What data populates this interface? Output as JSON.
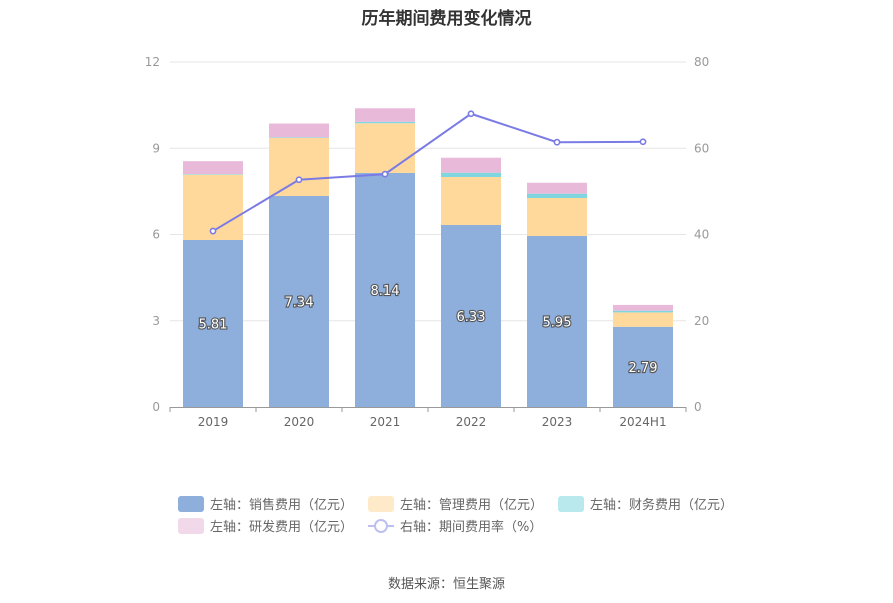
{
  "title": "历年期间费用变化情况",
  "source": "数据来源：恒生聚源",
  "chart_data": {
    "type": "bar",
    "stacked": true,
    "categories": [
      "2019",
      "2020",
      "2021",
      "2022",
      "2023",
      "2024H1"
    ],
    "y_left": {
      "ylim": [
        0,
        12
      ],
      "ticks": [
        "0",
        "3",
        "6",
        "9",
        "12"
      ]
    },
    "y_right": {
      "ylim": [
        0,
        80
      ],
      "ticks": [
        "0",
        "20",
        "40",
        "60",
        "80"
      ]
    },
    "grid": true,
    "legend_position": "bottom",
    "series": [
      {
        "name": "左轴：销售费用（亿元）",
        "type": "bar",
        "axis": "left",
        "color": "#8eaedb",
        "values": [
          5.81,
          7.34,
          8.14,
          6.33,
          5.95,
          2.79
        ],
        "labels": [
          "5.81",
          "7.34",
          "8.14",
          "6.33",
          "5.95",
          "2.79"
        ]
      },
      {
        "name": "左轴：管理费用（亿元）",
        "type": "bar",
        "axis": "left",
        "color": "#fed99b",
        "values": [
          2.27,
          2.02,
          1.73,
          1.67,
          1.32,
          0.5
        ]
      },
      {
        "name": "左轴：财务费用（亿元）",
        "type": "bar",
        "axis": "left",
        "color": "#7fd6df",
        "values": [
          0.02,
          0.02,
          0.05,
          0.15,
          0.15,
          0.06
        ]
      },
      {
        "name": "左轴：研发费用（亿元）",
        "type": "bar",
        "axis": "left",
        "color": "#e8b9d9",
        "values": [
          0.45,
          0.48,
          0.47,
          0.52,
          0.38,
          0.2
        ]
      },
      {
        "name": "右轴：期间费用率（%）",
        "type": "line",
        "axis": "right",
        "color": "#7b7be6",
        "values": [
          40.8,
          52.7,
          54.0,
          68.0,
          61.4,
          61.5
        ]
      }
    ]
  }
}
